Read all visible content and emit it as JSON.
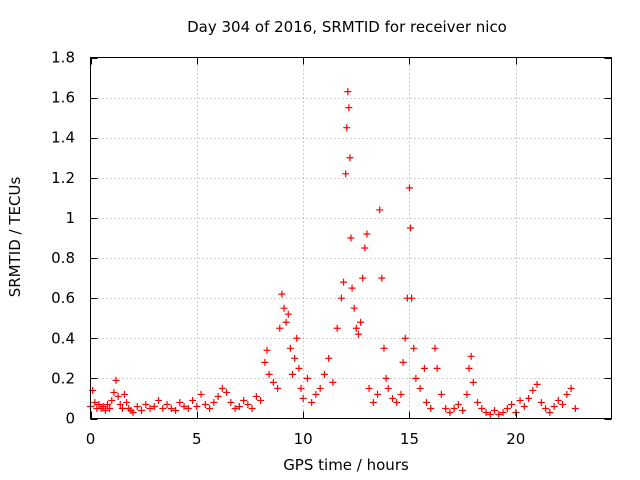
{
  "chart_data": {
    "type": "scatter",
    "title": "Day 304 of 2016, SRMTID for receiver nico",
    "xlabel": "GPS time / hours",
    "ylabel": "SRMTID / TECUs",
    "xlim": [
      0,
      24.5
    ],
    "ylim": [
      0,
      1.8
    ],
    "grid": true,
    "x_ticks": [
      0,
      5,
      10,
      15,
      20
    ],
    "x_tick_labels": [
      "0",
      "5",
      "10",
      "15",
      "20"
    ],
    "y_ticks": [
      0,
      0.2,
      0.4,
      0.6,
      0.8,
      1.0,
      1.2,
      1.4,
      1.6,
      1.8
    ],
    "y_tick_labels": [
      "0",
      "0.2",
      "0.4",
      "0.6",
      "0.8",
      "1",
      "1.2",
      "1.4",
      "1.6",
      "1.8"
    ],
    "marker": "+",
    "color": "#ff0000",
    "series": [
      {
        "name": "nico",
        "points": [
          [
            0.0,
            0.06
          ],
          [
            0.1,
            0.14
          ],
          [
            0.2,
            0.08
          ],
          [
            0.3,
            0.05
          ],
          [
            0.4,
            0.07
          ],
          [
            0.5,
            0.05
          ],
          [
            0.6,
            0.06
          ],
          [
            0.7,
            0.04
          ],
          [
            0.8,
            0.07
          ],
          [
            0.9,
            0.05
          ],
          [
            1.0,
            0.09
          ],
          [
            1.1,
            0.13
          ],
          [
            1.2,
            0.19
          ],
          [
            1.3,
            0.11
          ],
          [
            1.4,
            0.07
          ],
          [
            1.5,
            0.05
          ],
          [
            1.6,
            0.12
          ],
          [
            1.7,
            0.08
          ],
          [
            1.8,
            0.05
          ],
          [
            1.9,
            0.04
          ],
          [
            2.0,
            0.03
          ],
          [
            2.2,
            0.06
          ],
          [
            2.4,
            0.04
          ],
          [
            2.6,
            0.07
          ],
          [
            2.8,
            0.05
          ],
          [
            3.0,
            0.06
          ],
          [
            3.2,
            0.09
          ],
          [
            3.4,
            0.05
          ],
          [
            3.6,
            0.07
          ],
          [
            3.8,
            0.05
          ],
          [
            4.0,
            0.04
          ],
          [
            4.2,
            0.08
          ],
          [
            4.4,
            0.06
          ],
          [
            4.6,
            0.05
          ],
          [
            4.8,
            0.09
          ],
          [
            5.0,
            0.06
          ],
          [
            5.2,
            0.12
          ],
          [
            5.4,
            0.07
          ],
          [
            5.6,
            0.05
          ],
          [
            5.8,
            0.08
          ],
          [
            6.0,
            0.11
          ],
          [
            6.2,
            0.15
          ],
          [
            6.4,
            0.13
          ],
          [
            6.6,
            0.08
          ],
          [
            6.8,
            0.05
          ],
          [
            7.0,
            0.06
          ],
          [
            7.2,
            0.09
          ],
          [
            7.4,
            0.07
          ],
          [
            7.6,
            0.05
          ],
          [
            7.8,
            0.11
          ],
          [
            8.0,
            0.09
          ],
          [
            8.2,
            0.28
          ],
          [
            8.3,
            0.34
          ],
          [
            8.4,
            0.22
          ],
          [
            8.6,
            0.18
          ],
          [
            8.8,
            0.15
          ],
          [
            8.9,
            0.45
          ],
          [
            9.0,
            0.62
          ],
          [
            9.1,
            0.55
          ],
          [
            9.2,
            0.48
          ],
          [
            9.3,
            0.52
          ],
          [
            9.4,
            0.35
          ],
          [
            9.5,
            0.22
          ],
          [
            9.6,
            0.3
          ],
          [
            9.7,
            0.4
          ],
          [
            9.8,
            0.25
          ],
          [
            9.9,
            0.15
          ],
          [
            10.0,
            0.1
          ],
          [
            10.2,
            0.2
          ],
          [
            10.4,
            0.08
          ],
          [
            10.6,
            0.12
          ],
          [
            10.8,
            0.15
          ],
          [
            11.0,
            0.22
          ],
          [
            11.2,
            0.3
          ],
          [
            11.4,
            0.18
          ],
          [
            11.6,
            0.45
          ],
          [
            11.8,
            0.6
          ],
          [
            11.9,
            0.68
          ],
          [
            12.0,
            1.22
          ],
          [
            12.05,
            1.45
          ],
          [
            12.1,
            1.63
          ],
          [
            12.15,
            1.55
          ],
          [
            12.2,
            1.3
          ],
          [
            12.25,
            0.9
          ],
          [
            12.3,
            0.65
          ],
          [
            12.4,
            0.55
          ],
          [
            12.5,
            0.45
          ],
          [
            12.6,
            0.42
          ],
          [
            12.7,
            0.48
          ],
          [
            12.8,
            0.7
          ],
          [
            12.9,
            0.85
          ],
          [
            13.0,
            0.92
          ],
          [
            13.1,
            0.15
          ],
          [
            13.3,
            0.08
          ],
          [
            13.5,
            0.12
          ],
          [
            13.6,
            1.04
          ],
          [
            13.7,
            0.7
          ],
          [
            13.8,
            0.35
          ],
          [
            13.9,
            0.2
          ],
          [
            14.0,
            0.15
          ],
          [
            14.2,
            0.1
          ],
          [
            14.4,
            0.08
          ],
          [
            14.6,
            0.12
          ],
          [
            14.7,
            0.28
          ],
          [
            14.8,
            0.4
          ],
          [
            14.9,
            0.6
          ],
          [
            15.0,
            1.15
          ],
          [
            15.05,
            0.95
          ],
          [
            15.1,
            0.6
          ],
          [
            15.2,
            0.35
          ],
          [
            15.3,
            0.2
          ],
          [
            15.5,
            0.15
          ],
          [
            15.7,
            0.25
          ],
          [
            15.8,
            0.08
          ],
          [
            16.0,
            0.05
          ],
          [
            16.2,
            0.35
          ],
          [
            16.3,
            0.25
          ],
          [
            16.5,
            0.12
          ],
          [
            16.7,
            0.05
          ],
          [
            16.9,
            0.03
          ],
          [
            17.1,
            0.05
          ],
          [
            17.3,
            0.07
          ],
          [
            17.5,
            0.04
          ],
          [
            17.7,
            0.12
          ],
          [
            17.8,
            0.25
          ],
          [
            17.9,
            0.31
          ],
          [
            18.0,
            0.18
          ],
          [
            18.2,
            0.08
          ],
          [
            18.4,
            0.05
          ],
          [
            18.6,
            0.03
          ],
          [
            18.8,
            0.02
          ],
          [
            19.0,
            0.04
          ],
          [
            19.2,
            0.02
          ],
          [
            19.4,
            0.03
          ],
          [
            19.6,
            0.05
          ],
          [
            19.8,
            0.07
          ],
          [
            20.0,
            0.03
          ],
          [
            20.2,
            0.09
          ],
          [
            20.4,
            0.06
          ],
          [
            20.6,
            0.1
          ],
          [
            20.8,
            0.14
          ],
          [
            21.0,
            0.17
          ],
          [
            21.2,
            0.08
          ],
          [
            21.4,
            0.05
          ],
          [
            21.6,
            0.03
          ],
          [
            21.8,
            0.06
          ],
          [
            22.0,
            0.09
          ],
          [
            22.2,
            0.07
          ],
          [
            22.4,
            0.12
          ],
          [
            22.6,
            0.15
          ],
          [
            22.8,
            0.05
          ]
        ]
      }
    ]
  }
}
